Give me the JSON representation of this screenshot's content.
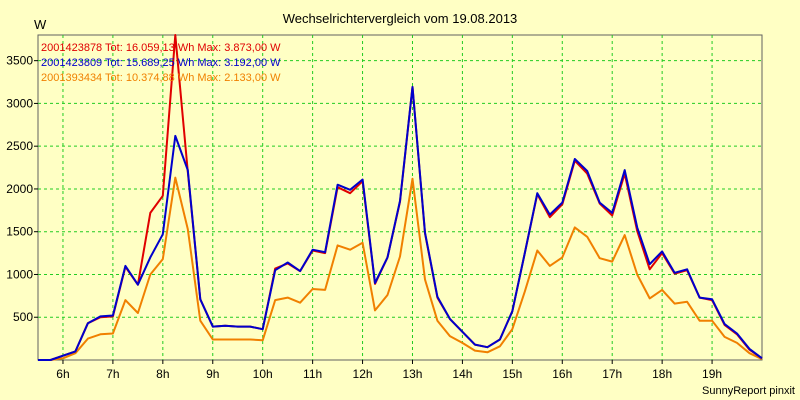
{
  "chart_data": {
    "type": "line",
    "title": "Wechselrichtervergleich vom 19.08.2013",
    "ylabel": "W",
    "footer": "SunnyReport pinxit",
    "xlim": [
      5.5,
      20.0
    ],
    "ylim": [
      0,
      3800
    ],
    "grid": true,
    "legend_placement": "top-left",
    "x_ticks": [
      {
        "value": 6,
        "label": "6h"
      },
      {
        "value": 7,
        "label": "7h"
      },
      {
        "value": 8,
        "label": "8h"
      },
      {
        "value": 9,
        "label": "9h"
      },
      {
        "value": 10,
        "label": "10h"
      },
      {
        "value": 11,
        "label": "11h"
      },
      {
        "value": 12,
        "label": "12h"
      },
      {
        "value": 13,
        "label": "13h"
      },
      {
        "value": 14,
        "label": "14h"
      },
      {
        "value": 15,
        "label": "15h"
      },
      {
        "value": 16,
        "label": "16h"
      },
      {
        "value": 17,
        "label": "17h"
      },
      {
        "value": 18,
        "label": "18h"
      },
      {
        "value": 19,
        "label": "19h"
      }
    ],
    "y_ticks": [
      {
        "value": 500,
        "label": "500"
      },
      {
        "value": 1000,
        "label": "1000"
      },
      {
        "value": 1500,
        "label": "1500"
      },
      {
        "value": 2000,
        "label": "2000"
      },
      {
        "value": 2500,
        "label": "2500"
      },
      {
        "value": 3000,
        "label": "3000"
      },
      {
        "value": 3500,
        "label": "3500"
      }
    ],
    "x": [
      5.5,
      5.75,
      6.0,
      6.25,
      6.5,
      6.75,
      7.0,
      7.25,
      7.5,
      7.75,
      8.0,
      8.25,
      8.5,
      8.75,
      9.0,
      9.25,
      9.5,
      9.75,
      10.0,
      10.25,
      10.5,
      10.75,
      11.0,
      11.25,
      11.5,
      11.75,
      12.0,
      12.25,
      12.5,
      12.75,
      13.0,
      13.25,
      13.5,
      13.75,
      14.0,
      14.25,
      14.5,
      14.75,
      15.0,
      15.25,
      15.5,
      15.75,
      16.0,
      16.25,
      16.5,
      16.75,
      17.0,
      17.25,
      17.5,
      17.75,
      18.0,
      18.25,
      18.5,
      18.75,
      19.0,
      19.25,
      19.5,
      19.75,
      20.0
    ],
    "series": [
      {
        "name": "2001423878",
        "legend": "2001423878 Tot: 16.059,13 Wh Max: 3.873,00 W",
        "color": "#E00000",
        "values": [
          0,
          0,
          50,
          100,
          430,
          500,
          510,
          1090,
          880,
          1720,
          1920,
          3873,
          2200,
          710,
          390,
          400,
          390,
          390,
          360,
          1070,
          1130,
          1040,
          1280,
          1250,
          2020,
          1950,
          2090,
          890,
          1200,
          1850,
          3192,
          1480,
          730,
          480,
          330,
          180,
          150,
          240,
          570,
          1250,
          1940,
          1670,
          1820,
          2330,
          2180,
          1830,
          1690,
          2180,
          1510,
          1060,
          1250,
          1010,
          1050,
          730,
          700,
          410,
          300,
          120,
          20
        ]
      },
      {
        "name": "2001423809",
        "legend": "2001423809 Tot: 15.689,25 Wh Max: 3.192,00 W",
        "color": "#0000CC",
        "values": [
          0,
          0,
          50,
          100,
          430,
          510,
          520,
          1100,
          880,
          1200,
          1470,
          2620,
          2220,
          710,
          390,
          400,
          390,
          390,
          360,
          1050,
          1140,
          1040,
          1290,
          1260,
          2050,
          1990,
          2110,
          900,
          1200,
          1860,
          3192,
          1490,
          740,
          480,
          330,
          180,
          150,
          240,
          570,
          1250,
          1950,
          1700,
          1840,
          2350,
          2210,
          1840,
          1720,
          2220,
          1550,
          1120,
          1270,
          1020,
          1060,
          730,
          710,
          420,
          310,
          130,
          20
        ]
      },
      {
        "name": "2001393434",
        "legend": "2001393434 Tot: 10.374,88 Wh Max: 2.133,00 W",
        "color": "#F08000",
        "values": [
          0,
          0,
          20,
          80,
          250,
          300,
          310,
          700,
          550,
          1000,
          1180,
          2133,
          1530,
          460,
          240,
          240,
          240,
          240,
          230,
          700,
          730,
          670,
          830,
          820,
          1340,
          1290,
          1370,
          580,
          760,
          1210,
          2120,
          940,
          460,
          280,
          200,
          110,
          90,
          160,
          360,
          800,
          1280,
          1100,
          1200,
          1550,
          1440,
          1190,
          1150,
          1460,
          1000,
          720,
          820,
          660,
          680,
          460,
          460,
          270,
          200,
          80,
          10
        ]
      }
    ]
  }
}
